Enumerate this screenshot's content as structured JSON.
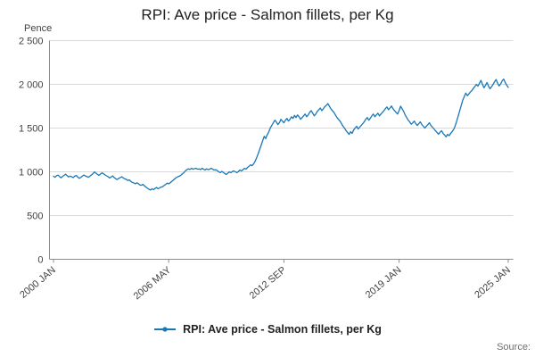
{
  "title": "RPI: Ave price - Salmon fillets, per Kg",
  "y_axis_unit_label": "Pence",
  "source_label": "Source:",
  "legend": {
    "label": "RPI: Ave price - Salmon fillets, per Kg"
  },
  "colors": {
    "line": "#1878b8",
    "grid": "#d9d9d9",
    "axis": "#8c8c8c",
    "text": "#414042"
  },
  "chart_data": {
    "type": "line",
    "title": "RPI: Ave price - Salmon fillets, per Kg",
    "xlabel": "",
    "ylabel": "Pence",
    "ylim": [
      0,
      2500
    ],
    "yticks": [
      0,
      500,
      1000,
      1500,
      2000,
      2500
    ],
    "ytick_labels": [
      "0",
      "500",
      "1 000",
      "1 500",
      "2 000",
      "2 500"
    ],
    "grid": "horizontal",
    "legend_position": "bottom",
    "x_frequency": "monthly",
    "x_start": "2000 JAN",
    "x_end": "2025 JAN",
    "xtick_labels": [
      "2000 JAN",
      "2006 MAY",
      "2012 SEP",
      "2019 JAN",
      "2025 JAN"
    ],
    "xtick_month_index": [
      0,
      76,
      152,
      228,
      300
    ],
    "series": [
      {
        "name": "RPI: Ave price - Salmon fillets, per Kg",
        "values": [
          950,
          938,
          955,
          962,
          945,
          932,
          948,
          960,
          972,
          955,
          942,
          950,
          944,
          934,
          950,
          958,
          940,
          926,
          936,
          950,
          963,
          953,
          945,
          938,
          950,
          964,
          978,
          998,
          985,
          970,
          960,
          974,
          988,
          978,
          964,
          954,
          944,
          930,
          940,
          953,
          935,
          920,
          912,
          924,
          934,
          944,
          930,
          920,
          914,
          900,
          908,
          890,
          880,
          872,
          862,
          874,
          864,
          850,
          846,
          856,
          840,
          826,
          812,
          800,
          792,
          806,
          796,
          810,
          820,
          806,
          816,
          826,
          830,
          844,
          856,
          870,
          862,
          876,
          890,
          904,
          920,
          934,
          944,
          950,
          960,
          976,
          990,
          1010,
          1024,
          1034,
          1028,
          1040,
          1030,
          1036,
          1040,
          1030,
          1034,
          1024,
          1040,
          1030,
          1020,
          1034,
          1024,
          1030,
          1040,
          1030,
          1020,
          1024,
          1014,
          1000,
          990,
          1004,
          994,
          980,
          970,
          984,
          1000,
          990,
          1004,
          1010,
          1000,
          990,
          1004,
          1020,
          1010,
          1024,
          1040,
          1030,
          1050,
          1064,
          1080,
          1070,
          1090,
          1120,
          1160,
          1205,
          1255,
          1305,
          1355,
          1405,
          1380,
          1425,
          1455,
          1500,
          1530,
          1560,
          1590,
          1570,
          1540,
          1560,
          1600,
          1580,
          1560,
          1590,
          1610,
          1580,
          1600,
          1630,
          1610,
          1645,
          1620,
          1650,
          1630,
          1600,
          1620,
          1640,
          1660,
          1630,
          1650,
          1680,
          1700,
          1670,
          1640,
          1660,
          1690,
          1710,
          1730,
          1700,
          1720,
          1745,
          1760,
          1780,
          1750,
          1720,
          1700,
          1680,
          1650,
          1620,
          1600,
          1580,
          1550,
          1520,
          1500,
          1470,
          1450,
          1428,
          1458,
          1440,
          1478,
          1500,
          1520,
          1490,
          1510,
          1530,
          1550,
          1572,
          1600,
          1620,
          1590,
          1612,
          1640,
          1660,
          1630,
          1650,
          1670,
          1640,
          1660,
          1680,
          1700,
          1722,
          1742,
          1710,
          1730,
          1752,
          1720,
          1700,
          1680,
          1660,
          1700,
          1750,
          1720,
          1690,
          1650,
          1620,
          1590,
          1570,
          1545,
          1560,
          1580,
          1550,
          1530,
          1550,
          1570,
          1540,
          1520,
          1500,
          1522,
          1540,
          1560,
          1530,
          1510,
          1490,
          1470,
          1450,
          1430,
          1452,
          1470,
          1440,
          1420,
          1400,
          1430,
          1412,
          1440,
          1460,
          1485,
          1525,
          1580,
          1640,
          1700,
          1760,
          1820,
          1860,
          1900,
          1870,
          1890,
          1912,
          1930,
          1955,
          1975,
          2000,
          1980,
          2012,
          2045,
          2000,
          1960,
          1990,
          2020,
          1980,
          1950,
          1972,
          2000,
          2030,
          2055,
          2012,
          1982,
          2005,
          2040,
          2060,
          2020,
          1990,
          1965
        ]
      }
    ]
  }
}
